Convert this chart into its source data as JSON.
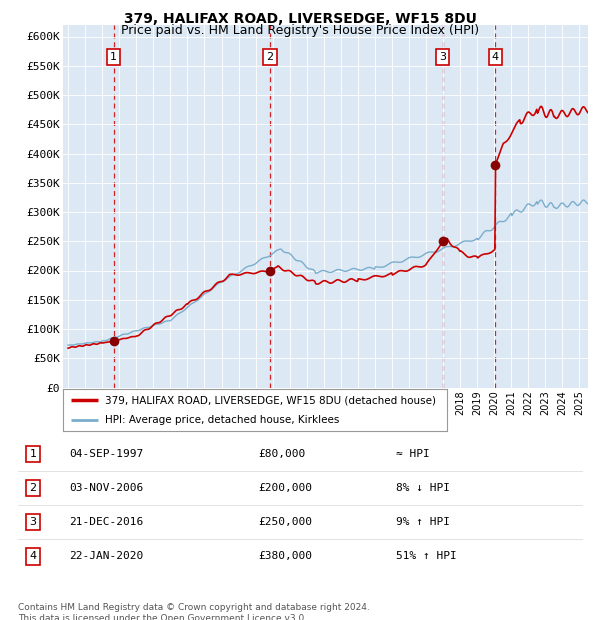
{
  "title1": "379, HALIFAX ROAD, LIVERSEDGE, WF15 8DU",
  "title2": "Price paid vs. HM Land Registry's House Price Index (HPI)",
  "bg_color": "#dce9f5",
  "red_line_color": "#cc0000",
  "blue_line_color": "#7aadcc",
  "sale_marker_color": "#880000",
  "vline_color": "#cc0000",
  "yticks": [
    0,
    50000,
    100000,
    150000,
    200000,
    250000,
    300000,
    350000,
    400000,
    450000,
    500000,
    550000,
    600000
  ],
  "ytick_labels": [
    "£0",
    "£50K",
    "£100K",
    "£150K",
    "£200K",
    "£250K",
    "£300K",
    "£350K",
    "£400K",
    "£450K",
    "£500K",
    "£550K",
    "£600K"
  ],
  "sales": [
    {
      "label": "1",
      "date": "04-SEP-1997",
      "year": 1997.67,
      "price": 80000,
      "hpi_note": "≈ HPI"
    },
    {
      "label": "2",
      "date": "03-NOV-2006",
      "year": 2006.84,
      "price": 200000,
      "hpi_note": "8% ↓ HPI"
    },
    {
      "label": "3",
      "date": "21-DEC-2016",
      "year": 2016.97,
      "price": 250000,
      "hpi_note": "9% ↑ HPI"
    },
    {
      "label": "4",
      "date": "22-JAN-2020",
      "year": 2020.06,
      "price": 380000,
      "hpi_note": "51% ↑ HPI"
    }
  ],
  "legend_red_label": "379, HALIFAX ROAD, LIVERSEDGE, WF15 8DU (detached house)",
  "legend_blue_label": "HPI: Average price, detached house, Kirklees",
  "footnote1": "Contains HM Land Registry data © Crown copyright and database right 2024.",
  "footnote2": "This data is licensed under the Open Government Licence v3.0."
}
